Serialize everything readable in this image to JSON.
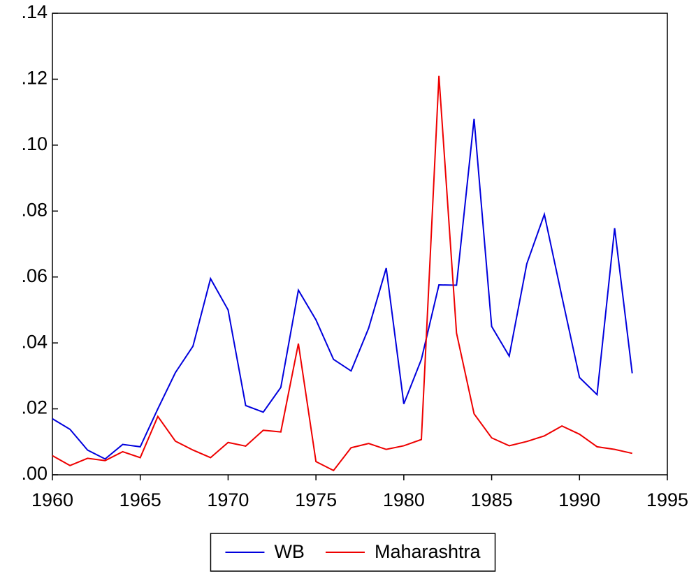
{
  "chart_data": {
    "type": "line",
    "x": [
      1960,
      1961,
      1962,
      1963,
      1964,
      1965,
      1966,
      1967,
      1968,
      1969,
      1970,
      1971,
      1972,
      1973,
      1974,
      1975,
      1976,
      1977,
      1978,
      1979,
      1980,
      1981,
      1982,
      1983,
      1984,
      1985,
      1986,
      1987,
      1988,
      1989,
      1990,
      1991,
      1992,
      1993
    ],
    "series": [
      {
        "name": "WB",
        "color": "#0000dd",
        "values": [
          0.017,
          0.0138,
          0.0075,
          0.0048,
          0.0092,
          0.0085,
          0.02,
          0.031,
          0.039,
          0.0595,
          0.05,
          0.021,
          0.019,
          0.0265,
          0.056,
          0.047,
          0.035,
          0.0315,
          0.0445,
          0.0627,
          0.0215,
          0.035,
          0.0576,
          0.0575,
          0.108,
          0.045,
          0.036,
          0.064,
          0.079,
          0.054,
          0.0295,
          0.0243,
          0.0748,
          0.0308
        ]
      },
      {
        "name": "Maharashtra",
        "color": "#ee0000",
        "values": [
          0.0058,
          0.0028,
          0.005,
          0.0043,
          0.007,
          0.0052,
          0.0177,
          0.0102,
          0.0075,
          0.0052,
          0.0098,
          0.0087,
          0.0135,
          0.013,
          0.0398,
          0.004,
          0.0013,
          0.0082,
          0.0095,
          0.0077,
          0.0088,
          0.0107,
          0.121,
          0.043,
          0.0185,
          0.0112,
          0.0088,
          0.0101,
          0.0118,
          0.0148,
          0.0123,
          0.0085,
          0.0077,
          0.0065
        ]
      }
    ],
    "xlim": [
      1960,
      1995
    ],
    "xticks": [
      1960,
      1965,
      1970,
      1975,
      1980,
      1985,
      1990,
      1995
    ],
    "ylim": [
      0,
      0.14
    ],
    "yticks": [
      {
        "value": 0,
        "label": ".00"
      },
      {
        "value": 0.02,
        "label": ".02"
      },
      {
        "value": 0.04,
        "label": ".04"
      },
      {
        "value": 0.06,
        "label": ".06"
      },
      {
        "value": 0.08,
        "label": ".08"
      },
      {
        "value": 0.1,
        "label": ".10"
      },
      {
        "value": 0.12,
        "label": ".12"
      },
      {
        "value": 0.14,
        "label": ".14"
      }
    ],
    "grid": false,
    "legend": "bottom"
  }
}
